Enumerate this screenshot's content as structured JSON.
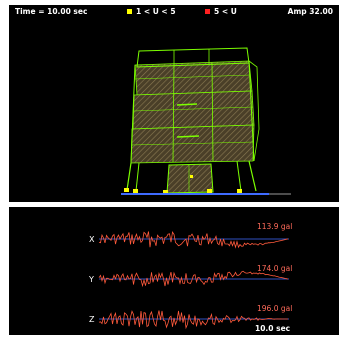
{
  "top": {
    "time_label": "Time = 10.00 sec",
    "legend": [
      {
        "label": "1 < U < 5",
        "color": "#ffff00"
      },
      {
        "label": "5 < U",
        "color": "#ff2020"
      }
    ],
    "amp_label": "Amp 32.00"
  },
  "traces": [
    {
      "axis": "X",
      "peak": "113.9 gal"
    },
    {
      "axis": "Y",
      "peak": "174.0 gal"
    },
    {
      "axis": "Z",
      "peak": "196.0 gal"
    }
  ],
  "end_time": "10.0 sec",
  "colors": {
    "background": "#000000",
    "structure": "#7cff00",
    "floor_fill": "#5a4a2e",
    "trace": "#ff5a3c",
    "baseline": "#3f6bff"
  }
}
